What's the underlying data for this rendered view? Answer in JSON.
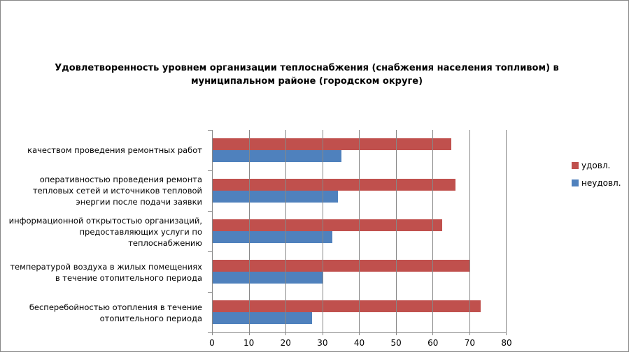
{
  "chart_data": {
    "type": "bar",
    "orientation": "horizontal",
    "title": "Удовлетворенность уровнем организации теплоснабжения (снабжения населения топливом) в муниципальном районе (городском округе)",
    "categories": [
      "качеством проведения ремонтных работ",
      "оперативностью проведения ремонта тепловых сетей и источников тепловой энергии после подачи заявки",
      "информационной открытостью организаций, предоставляющих услуги по теплоснабжению",
      "температурой воздуха в жилых помещениях в течение отопительного периода",
      "бесперебойностью отопления в течение отопительного периода"
    ],
    "series": [
      {
        "name": "удовл.",
        "color": "#C0504D",
        "values": [
          65,
          66,
          62.5,
          70,
          73
        ]
      },
      {
        "name": "неудовл.",
        "color": "#4F81BD",
        "values": [
          35,
          34,
          32.5,
          30,
          27
        ]
      }
    ],
    "xlabel": "",
    "ylabel": "",
    "xlim": [
      0,
      80
    ],
    "x_ticks": [
      0,
      10,
      20,
      30,
      40,
      50,
      60,
      70,
      80
    ],
    "grid": "vertical-only",
    "legend_position": "right",
    "colors": {
      "gridline": "#878787",
      "axis": "#878787",
      "border": "#868686",
      "text": "#000000"
    }
  }
}
